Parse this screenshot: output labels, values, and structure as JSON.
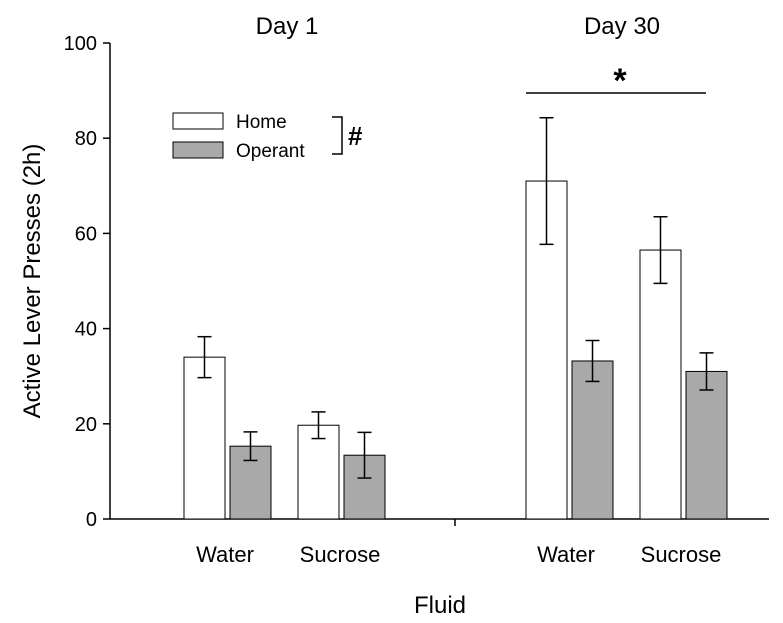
{
  "chart_data": {
    "type": "bar",
    "xlabel": "Fluid",
    "ylabel": "Active Lever Presses (2h)",
    "ylim": [
      0,
      100
    ],
    "yticks": [
      0,
      20,
      40,
      60,
      80,
      100
    ],
    "grid": false,
    "legend_position": "top-left",
    "groups": [
      {
        "title": "Day 1",
        "categories": [
          "Water",
          "Sucrose"
        ]
      },
      {
        "title": "Day 30",
        "categories": [
          "Water",
          "Sucrose"
        ]
      }
    ],
    "series": [
      {
        "name": "Home",
        "color": "#ffffff",
        "values": [
          34,
          19.7,
          71,
          56.5
        ],
        "errors": [
          4.3,
          2.8,
          13.3,
          7
        ]
      },
      {
        "name": "Operant",
        "color": "#a9a9a9",
        "values": [
          15.3,
          13.4,
          33.2,
          31
        ],
        "errors": [
          3,
          4.8,
          4.3,
          3.9
        ]
      }
    ],
    "annotations": {
      "legend_marker": "#",
      "day30_marker": "*"
    }
  }
}
